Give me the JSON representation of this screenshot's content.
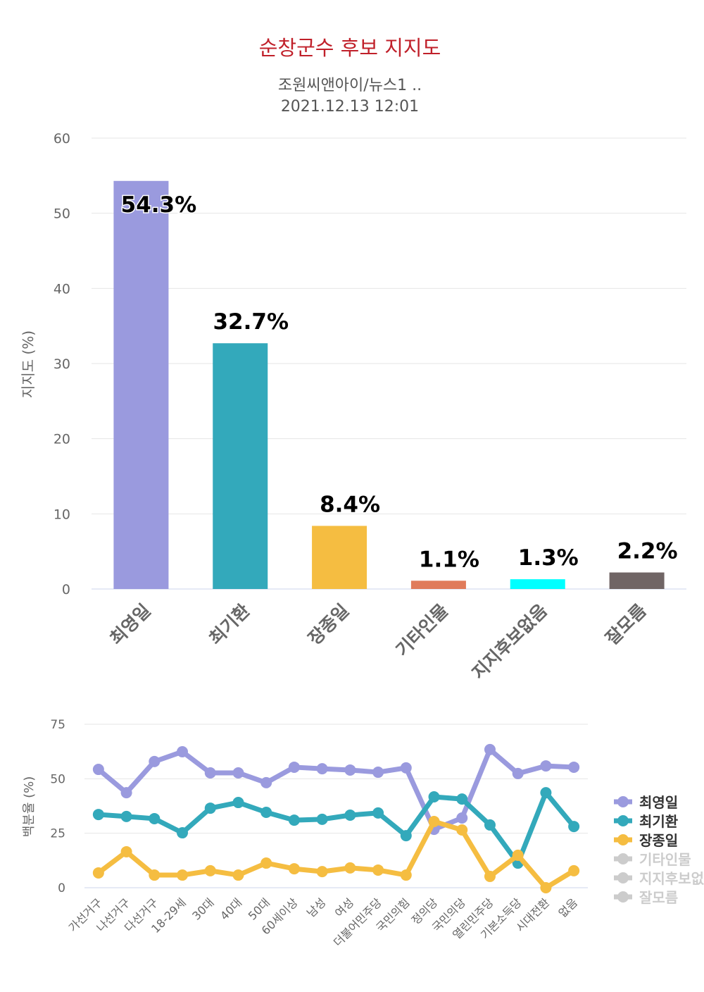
{
  "chart_data": [
    {
      "type": "bar",
      "title": "순창군수 후보 지지도",
      "subtitle": "조원씨앤아이/뉴스1 ..",
      "datetime": "2021.12.13 12:01",
      "ylabel": "지지도 (%)",
      "ylim": [
        0,
        60
      ],
      "yticks": [
        "0",
        "10",
        "20",
        "30",
        "40",
        "50",
        "60"
      ],
      "grid": true,
      "categories": [
        "최영일",
        "최기환",
        "장종일",
        "기타인물",
        "지지후보없음",
        "잘모름"
      ],
      "values": [
        54.3,
        32.7,
        8.4,
        1.1,
        1.3,
        2.2
      ],
      "labels": [
        "54.3%",
        "32.7%",
        "8.4%",
        "1.1%",
        "1.3%",
        "2.2%"
      ],
      "colors": [
        "#9a9ade",
        "#33a9bb",
        "#f5bd41",
        "#e07b5b",
        "#00ffff",
        "#706565"
      ]
    },
    {
      "type": "line",
      "ylabel": "백분율 (%)",
      "ylim": [
        0,
        75
      ],
      "yticks": [
        "0",
        "25",
        "50",
        "75"
      ],
      "grid": true,
      "legend_placement": "right",
      "categories": [
        "가선거구",
        "나선거구",
        "다선거구",
        "18-29세",
        "30대",
        "40대",
        "50대",
        "60세이상",
        "남성",
        "여성",
        "더불어민주당",
        "국민의힘",
        "정의당",
        "국민의당",
        "열린민주당",
        "기본소득당",
        "시대전환",
        "없음"
      ],
      "series": [
        {
          "name": "최영일",
          "color": "#9a9ade",
          "visible": true,
          "values": [
            54.3,
            43.6,
            57.9,
            62.4,
            52.7,
            52.7,
            48.2,
            55.3,
            54.6,
            54.0,
            53.0,
            55.0,
            26.8,
            32.0,
            63.4,
            52.4,
            55.9,
            55.3
          ]
        },
        {
          "name": "최기환",
          "color": "#33a9bb",
          "visible": true,
          "values": [
            33.6,
            32.7,
            31.7,
            25.2,
            36.5,
            39.1,
            34.6,
            31.0,
            31.4,
            33.3,
            34.3,
            23.9,
            41.7,
            40.7,
            28.8,
            11.3,
            43.6,
            28.1
          ]
        },
        {
          "name": "장종일",
          "color": "#f5bd41",
          "visible": true,
          "values": [
            6.8,
            16.5,
            5.8,
            5.8,
            7.8,
            5.8,
            11.3,
            8.7,
            7.4,
            9.1,
            8.1,
            5.8,
            30.4,
            26.5,
            5.2,
            14.9,
            0.0,
            7.8
          ]
        },
        {
          "name": "기타인물",
          "color": "#cccccc",
          "visible": false
        },
        {
          "name": "지지후보없음",
          "color": "#cccccc",
          "visible": false
        },
        {
          "name": "잘모름",
          "color": "#cccccc",
          "visible": false
        }
      ]
    }
  ]
}
